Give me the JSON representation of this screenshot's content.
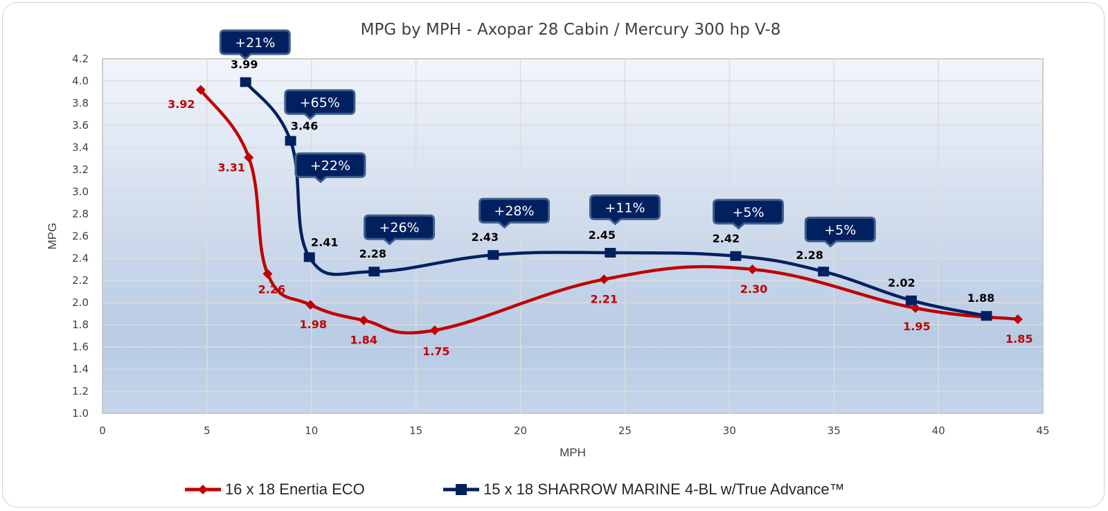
{
  "chart_data": {
    "type": "line",
    "title": "MPG by MPH - Axopar 28 Cabin / Mercury 300 hp V-8",
    "xlabel": "MPH",
    "ylabel": "MPG",
    "xlim": [
      0,
      45
    ],
    "ylim": [
      1.0,
      4.2
    ],
    "xticks": [
      "0",
      "5",
      "10",
      "15",
      "20",
      "25",
      "30",
      "35",
      "40",
      "45"
    ],
    "xtick_values": [
      0,
      5,
      10,
      15,
      20,
      25,
      30,
      35,
      40,
      45
    ],
    "yticks": [
      "1.0",
      "1.2",
      "1.4",
      "1.6",
      "1.8",
      "2.0",
      "2.2",
      "2.4",
      "2.6",
      "2.8",
      "3.0",
      "3.2",
      "3.4",
      "3.6",
      "3.8",
      "4.0",
      "4.2"
    ],
    "ytick_values": [
      1.0,
      1.2,
      1.4,
      1.6,
      1.8,
      2.0,
      2.2,
      2.4,
      2.6,
      2.8,
      3.0,
      3.2,
      3.4,
      3.6,
      3.8,
      4.0,
      4.2
    ],
    "grid": true,
    "legend_position": "bottom",
    "series": [
      {
        "name": "16 x 18 Enertia ECO",
        "color": "#c00000",
        "marker": "diamond",
        "x": [
          4.7,
          7.0,
          7.9,
          9.95,
          12.5,
          15.9,
          24.0,
          31.1,
          38.9,
          43.8
        ],
        "y": [
          3.92,
          3.31,
          2.26,
          1.98,
          1.84,
          1.75,
          2.21,
          2.3,
          1.95,
          1.85
        ],
        "labels": [
          "3.92",
          "3.31",
          "2.26",
          "1.98",
          "1.84",
          "1.75",
          "2.21",
          "2.30",
          "1.95",
          "1.85"
        ]
      },
      {
        "name": "15 x 18 SHARROW MARINE 4-BL w/True Advance™",
        "color": "#002060",
        "marker": "square",
        "x": [
          6.85,
          9.0,
          9.9,
          13.0,
          18.7,
          24.3,
          30.3,
          34.5,
          38.7,
          42.3
        ],
        "y": [
          3.99,
          3.46,
          2.41,
          2.28,
          2.43,
          2.45,
          2.42,
          2.28,
          2.02,
          1.88
        ],
        "labels": [
          "3.99",
          "3.46",
          "2.41",
          "2.28",
          "2.43",
          "2.45",
          "2.42",
          "2.28",
          "2.02",
          "1.88"
        ]
      }
    ],
    "annotations": [
      {
        "text": "+21%",
        "x": 7.3,
        "y": 4.35
      },
      {
        "text": "+65%",
        "x": 10.4,
        "y": 3.81
      },
      {
        "text": "+22%",
        "x": 10.9,
        "y": 3.24
      },
      {
        "text": "+26%",
        "x": 14.2,
        "y": 2.68
      },
      {
        "text": "+28%",
        "x": 19.7,
        "y": 2.83
      },
      {
        "text": "+11%",
        "x": 25.0,
        "y": 2.86
      },
      {
        "text": "+5%",
        "x": 30.9,
        "y": 2.82
      },
      {
        "text": "+5%",
        "x": 35.3,
        "y": 2.66
      }
    ],
    "colors": {
      "red": "#c00000",
      "blue": "#002060",
      "callout_fill": "#002060",
      "callout_border": "#3e5f8a"
    }
  }
}
